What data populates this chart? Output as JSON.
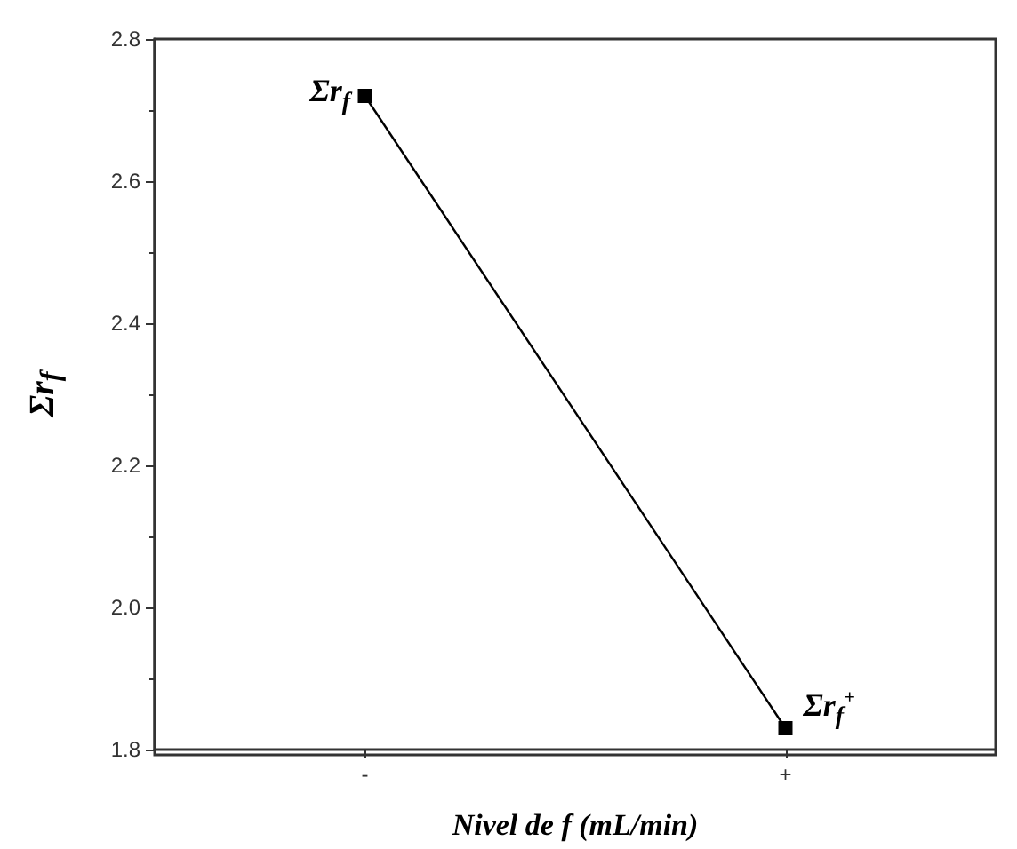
{
  "chart_data": {
    "type": "line",
    "xlabel": "Nivel de f (mL/min)",
    "ylabel": "Σr$_{f}$",
    "categories": [
      "-",
      "+"
    ],
    "series": [
      {
        "color": "#000000",
        "values": [
          2.72,
          1.83
        ]
      }
    ],
    "ylim": [
      1.8,
      2.8
    ],
    "yticks": [
      1.8,
      {
        "value": 2,
        "label": "2.0"
      },
      2.2,
      2.4,
      2.6,
      2.8
    ],
    "marker": "square",
    "line_style": "solid",
    "grid": false,
    "annotations": [
      {
        "text": "Σr$_{f}$",
        "x": "-",
        "y": 2.72
      },
      {
        "text": "Σr$_{f}$$^{+}$",
        "x": "+",
        "y": 1.83
      }
    ]
  }
}
